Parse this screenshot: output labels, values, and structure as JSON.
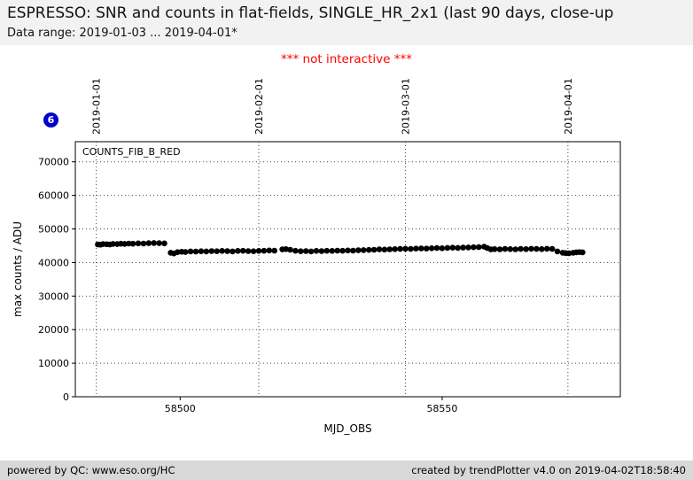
{
  "header": {
    "title": "ESPRESSO: SNR and counts in flat-fields, SINGLE_HR_2x1 (last 90 days, close-up",
    "data_range": "Data range: 2019-01-03 ... 2019-04-01*"
  },
  "notice": "*** not interactive ***",
  "badge": "6",
  "footer": {
    "left": "powered by QC: www.eso.org/HC",
    "right": "created by trendPlotter v4.0 on 2019-04-02T18:58:40"
  },
  "colors": {
    "notice_text": "#ff0000",
    "badge_bg": "#0000cc",
    "point": "#000000",
    "header_bg": "#f2f2f2",
    "footer_bg": "#d8d8d8"
  },
  "chart_data": {
    "type": "scatter",
    "series_label": "COUNTS_FIB_B_RED",
    "xlabel": "MJD_OBS",
    "ylabel": "max counts / ADU",
    "xlim": [
      58480,
      58584
    ],
    "ylim": [
      0,
      76000
    ],
    "x_ticks": [
      58500,
      58550
    ],
    "y_ticks": [
      0,
      10000,
      20000,
      30000,
      40000,
      50000,
      60000,
      70000
    ],
    "grid": true,
    "date_lines": [
      {
        "mjd": 58484,
        "label": "2019-01-01"
      },
      {
        "mjd": 58515,
        "label": "2019-02-01"
      },
      {
        "mjd": 58543,
        "label": "2019-03-01"
      },
      {
        "mjd": 58574,
        "label": "2019-04-01"
      }
    ],
    "points": [
      [
        58484.3,
        45400
      ],
      [
        58484.8,
        45300
      ],
      [
        58485.3,
        45500
      ],
      [
        58486,
        45450
      ],
      [
        58486.6,
        45350
      ],
      [
        58487.2,
        45550
      ],
      [
        58488,
        45500
      ],
      [
        58488.7,
        45600
      ],
      [
        58489.4,
        45550
      ],
      [
        58490.2,
        45650
      ],
      [
        58491,
        45600
      ],
      [
        58492,
        45700
      ],
      [
        58493,
        45650
      ],
      [
        58494,
        45750
      ],
      [
        58495,
        45800
      ],
      [
        58496,
        45750
      ],
      [
        58497,
        45700
      ],
      [
        58498.2,
        42900
      ],
      [
        58498.8,
        42700
      ],
      [
        58499.5,
        43100
      ],
      [
        58500.3,
        43200
      ],
      [
        58501,
        43150
      ],
      [
        58502,
        43300
      ],
      [
        58503,
        43250
      ],
      [
        58504,
        43350
      ],
      [
        58505,
        43300
      ],
      [
        58506,
        43400
      ],
      [
        58507,
        43350
      ],
      [
        58508,
        43450
      ],
      [
        58509,
        43400
      ],
      [
        58510,
        43300
      ],
      [
        58511,
        43450
      ],
      [
        58512,
        43500
      ],
      [
        58513,
        43400
      ],
      [
        58514,
        43350
      ],
      [
        58515,
        43450
      ],
      [
        58516,
        43500
      ],
      [
        58517,
        43600
      ],
      [
        58518,
        43550
      ],
      [
        58519.5,
        43900
      ],
      [
        58520.2,
        44000
      ],
      [
        58521,
        43800
      ],
      [
        58522,
        43500
      ],
      [
        58523,
        43350
      ],
      [
        58524,
        43400
      ],
      [
        58525,
        43300
      ],
      [
        58526,
        43450
      ],
      [
        58527,
        43400
      ],
      [
        58528,
        43500
      ],
      [
        58529,
        43450
      ],
      [
        58530,
        43550
      ],
      [
        58531,
        43500
      ],
      [
        58532,
        43600
      ],
      [
        58533,
        43550
      ],
      [
        58534,
        43650
      ],
      [
        58535,
        43700
      ],
      [
        58536,
        43750
      ],
      [
        58537,
        43800
      ],
      [
        58538,
        43900
      ],
      [
        58539,
        43850
      ],
      [
        58540,
        43950
      ],
      [
        58541,
        44000
      ],
      [
        58542,
        44050
      ],
      [
        58543,
        44100
      ],
      [
        58544,
        44050
      ],
      [
        58545,
        44150
      ],
      [
        58546,
        44200
      ],
      [
        58547,
        44150
      ],
      [
        58548,
        44250
      ],
      [
        58549,
        44300
      ],
      [
        58550,
        44250
      ],
      [
        58551,
        44350
      ],
      [
        58552,
        44400
      ],
      [
        58553,
        44350
      ],
      [
        58554,
        44450
      ],
      [
        58555,
        44500
      ],
      [
        58556,
        44550
      ],
      [
        58557,
        44600
      ],
      [
        58558,
        44700
      ],
      [
        58558.6,
        44300
      ],
      [
        58559.3,
        43900
      ],
      [
        58560,
        44000
      ],
      [
        58561,
        43950
      ],
      [
        58562,
        44050
      ],
      [
        58563,
        44000
      ],
      [
        58564,
        43950
      ],
      [
        58565,
        44050
      ],
      [
        58566,
        44000
      ],
      [
        58567,
        44100
      ],
      [
        58568,
        44050
      ],
      [
        58569,
        44000
      ],
      [
        58570,
        44100
      ],
      [
        58571,
        44050
      ],
      [
        58572,
        43300
      ],
      [
        58573,
        42900
      ],
      [
        58573.6,
        42800
      ],
      [
        58574.2,
        42750
      ],
      [
        58575,
        42900
      ],
      [
        58575.6,
        43050
      ],
      [
        58576.2,
        43100
      ],
      [
        58576.8,
        43050
      ]
    ]
  }
}
